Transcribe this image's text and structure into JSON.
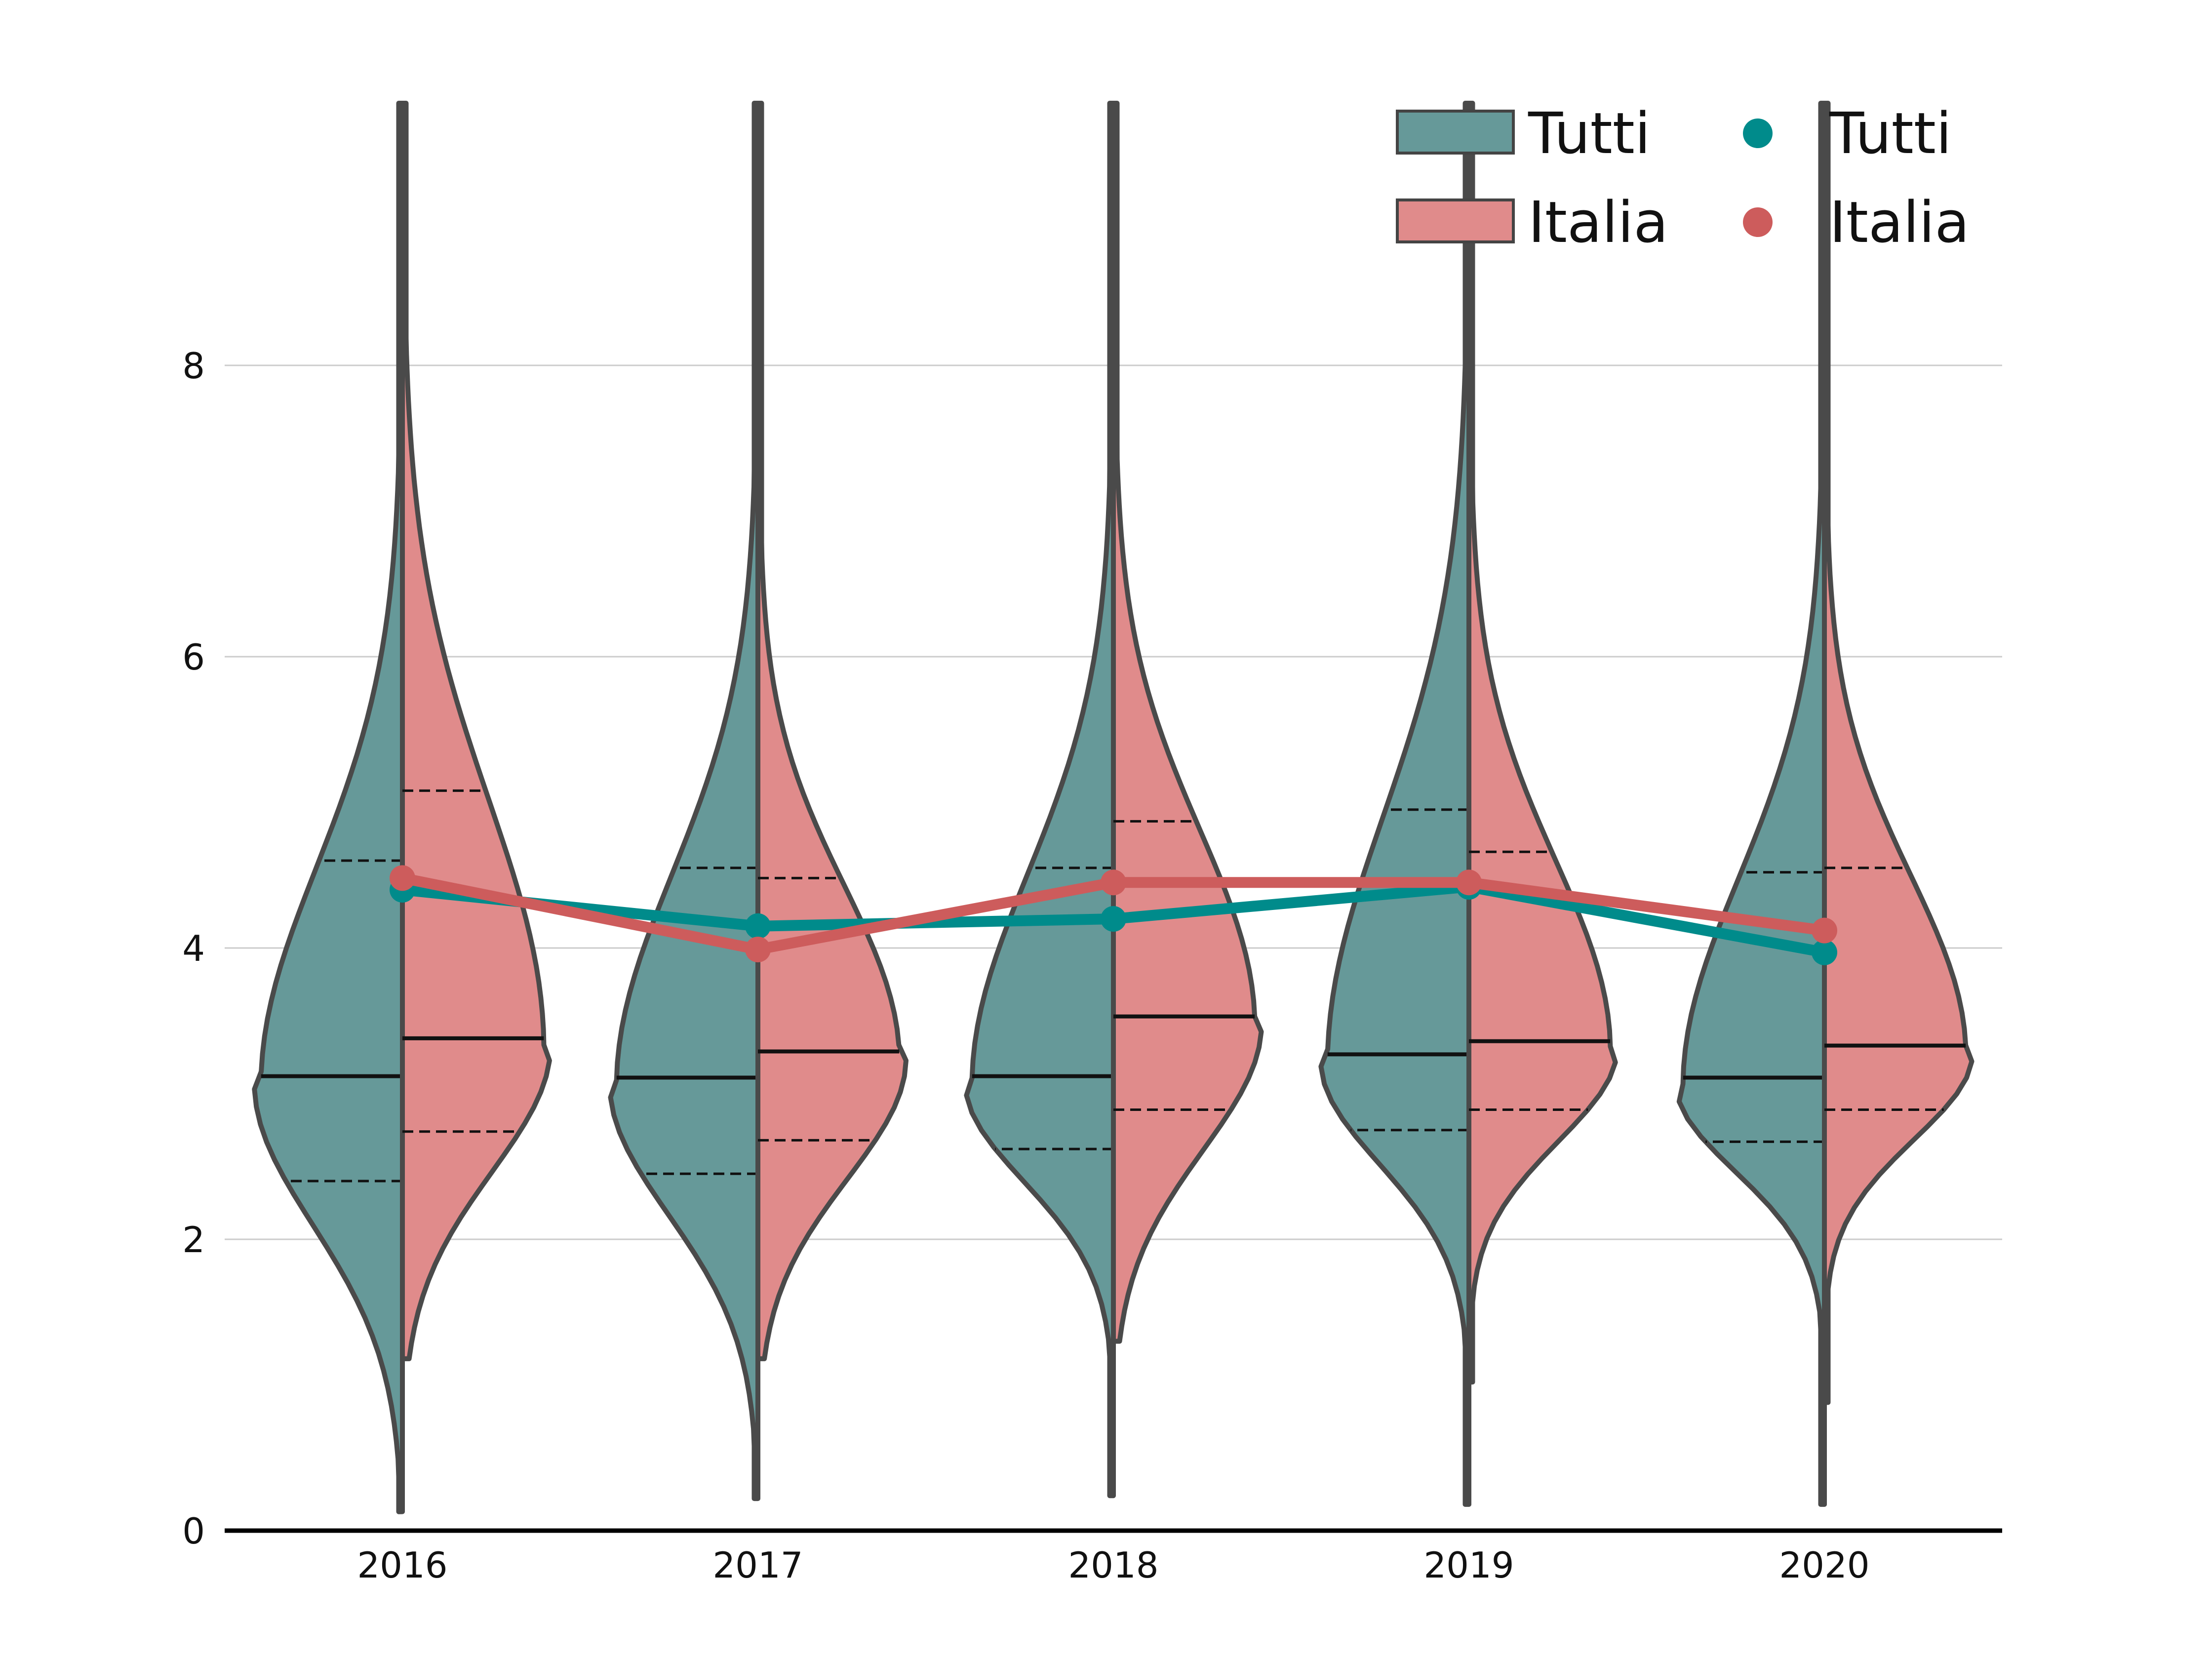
{
  "chart_data": {
    "type": "violin",
    "categories": [
      "2016",
      "2017",
      "2018",
      "2019",
      "2020"
    ],
    "ylim": [
      0,
      10
    ],
    "yticks": [
      0,
      2,
      4,
      6,
      8
    ],
    "grid": "horizontal",
    "legend_position": "top-right",
    "violin_series": [
      {
        "name": "Tutti",
        "color": "#669999",
        "side": "left",
        "quartiles": [
          {
            "q1": 2.4,
            "median": 3.12,
            "q3": 4.6
          },
          {
            "q1": 2.45,
            "median": 3.11,
            "q3": 4.55
          },
          {
            "q1": 2.62,
            "median": 3.12,
            "q3": 4.55
          },
          {
            "q1": 2.75,
            "median": 3.27,
            "q3": 4.95
          },
          {
            "q1": 2.67,
            "median": 3.11,
            "q3": 4.52
          }
        ],
        "ranges": [
          [
            0.13,
            9.8
          ],
          [
            0.22,
            9.8
          ],
          [
            0.24,
            9.8
          ],
          [
            0.18,
            9.8
          ],
          [
            0.18,
            9.8
          ]
        ]
      },
      {
        "name": "Italia",
        "color": "#e08b8b",
        "side": "right",
        "quartiles": [
          {
            "q1": 2.74,
            "median": 3.38,
            "q3": 5.08
          },
          {
            "q1": 2.68,
            "median": 3.29,
            "q3": 4.48
          },
          {
            "q1": 2.89,
            "median": 3.53,
            "q3": 4.87
          },
          {
            "q1": 2.89,
            "median": 3.36,
            "q3": 4.66
          },
          {
            "q1": 2.89,
            "median": 3.33,
            "q3": 4.55
          }
        ],
        "ranges": [
          [
            1.18,
            9.8
          ],
          [
            1.18,
            9.8
          ],
          [
            1.3,
            9.8
          ],
          [
            1.02,
            9.8
          ],
          [
            0.88,
            9.8
          ]
        ]
      }
    ],
    "line_series": [
      {
        "name": "Tutti",
        "color": "#008b8b",
        "values": [
          4.4,
          4.15,
          4.2,
          4.42,
          3.97
        ]
      },
      {
        "name": "Italia",
        "color": "#cd5c5c",
        "values": [
          4.48,
          3.99,
          4.45,
          4.45,
          4.12
        ]
      }
    ],
    "legend": {
      "violin_labels": [
        "Tutti",
        "Italia"
      ],
      "marker_labels": [
        "Tutti",
        "Italia"
      ]
    }
  }
}
